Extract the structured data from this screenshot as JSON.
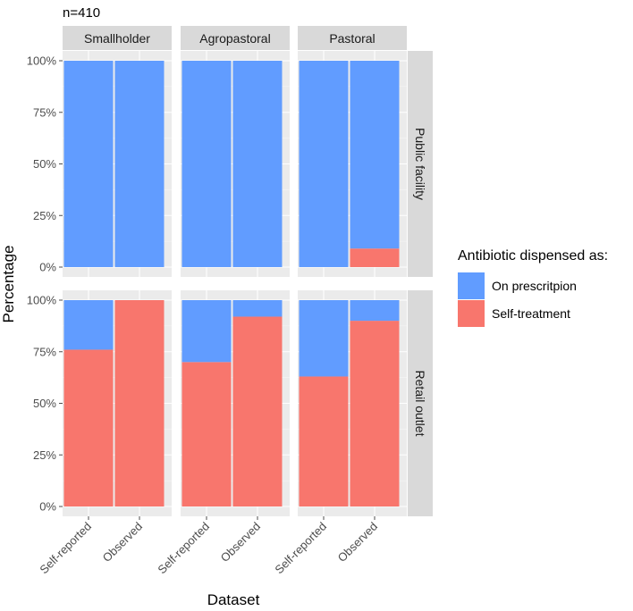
{
  "chart_data": {
    "type": "bar",
    "stacked": true,
    "subtitle": "n=410",
    "xlabel": "Dataset",
    "ylabel": "Percentage",
    "ylim": [
      0,
      100
    ],
    "y_ticks": [
      "0%",
      "25%",
      "50%",
      "75%",
      "100%"
    ],
    "categories": [
      "Self-reported",
      "Observed"
    ],
    "facet_columns": [
      "Smallholder",
      "Agropastoral",
      "Pastoral"
    ],
    "facet_rows": [
      "Public facility",
      "Retail outlet"
    ],
    "legend": {
      "title": "Antibiotic dispensed as:",
      "position": "right",
      "entries": [
        {
          "label": "On prescritpion",
          "color": "#619cff"
        },
        {
          "label": "Self-treatment",
          "color": "#f8766d"
        }
      ]
    },
    "series": [
      {
        "key": "self_treatment",
        "color": "#f8766d",
        "values": {
          "Public facility": {
            "Smallholder": [
              0,
              0
            ],
            "Agropastoral": [
              0,
              0
            ],
            "Pastoral": [
              0,
              9
            ]
          },
          "Retail outlet": {
            "Smallholder": [
              76,
              100
            ],
            "Agropastoral": [
              70,
              92
            ],
            "Pastoral": [
              63,
              90
            ]
          }
        }
      },
      {
        "key": "on_prescription",
        "color": "#619cff",
        "values": {
          "Public facility": {
            "Smallholder": [
              100,
              100
            ],
            "Agropastoral": [
              100,
              100
            ],
            "Pastoral": [
              100,
              91
            ]
          },
          "Retail outlet": {
            "Smallholder": [
              24,
              0
            ],
            "Agropastoral": [
              30,
              8
            ],
            "Pastoral": [
              37,
              10
            ]
          }
        }
      }
    ],
    "grid": true
  }
}
